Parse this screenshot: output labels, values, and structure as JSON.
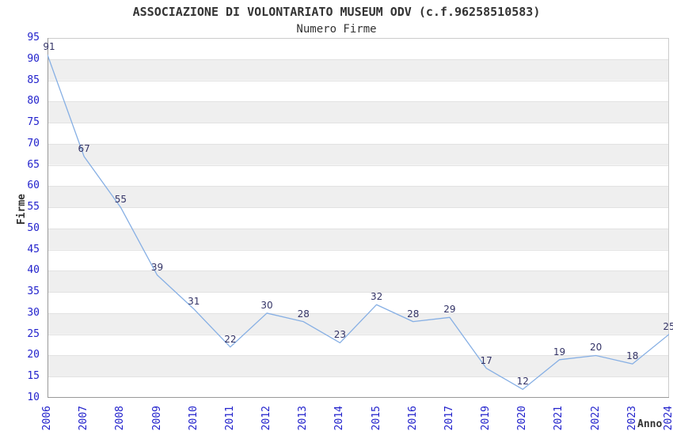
{
  "header": {
    "title": "ASSOCIAZIONE DI VOLONTARIATO MUSEUM ODV (c.f.96258510583)",
    "subtitle": "Numero Firme"
  },
  "chart_data": {
    "type": "line",
    "title": "ASSOCIAZIONE DI VOLONTARIATO MUSEUM ODV (c.f.96258510583)",
    "subtitle": "Numero Firme",
    "categories": [
      "2006",
      "2007",
      "2008",
      "2009",
      "2010",
      "2011",
      "2012",
      "2013",
      "2014",
      "2015",
      "2016",
      "2017",
      "2019",
      "2020",
      "2021",
      "2022",
      "2023",
      "2024"
    ],
    "values": [
      91,
      67,
      55,
      39,
      31,
      22,
      30,
      28,
      23,
      32,
      28,
      29,
      17,
      12,
      19,
      20,
      18,
      25
    ],
    "xlabel": "Anno",
    "ylabel": "Firme",
    "ylim": [
      10,
      95
    ],
    "ytick_step": 5,
    "grid": true,
    "legend_position": "none",
    "data_labels_visible": true,
    "colors": {
      "line": "#86afe4",
      "data_label": "#333366",
      "tick_label": "#2222cc",
      "band_gray": "#efefef",
      "gridline": "#e2e2e2",
      "border_dark": "#999999",
      "border_light": "#cccccc",
      "title_text": "#333333",
      "background": "#ffffff"
    }
  }
}
